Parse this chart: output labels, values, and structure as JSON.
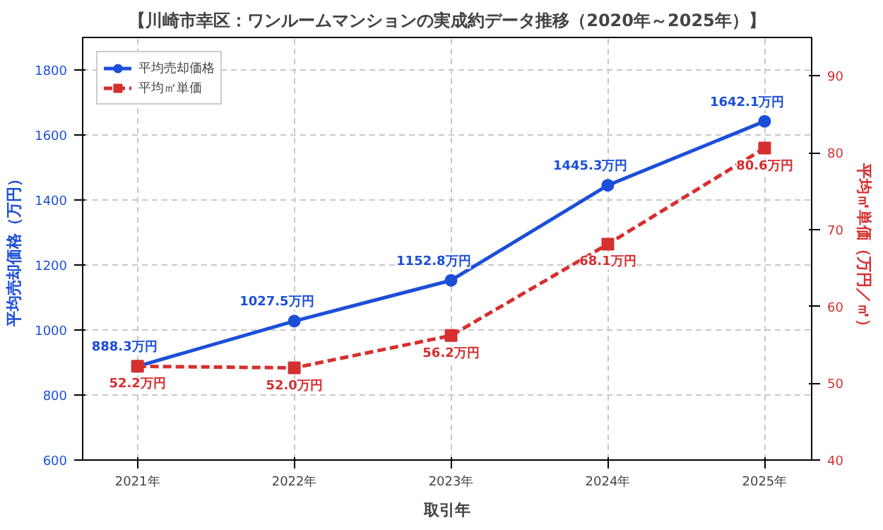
{
  "chart_data": {
    "type": "line",
    "title": "【川崎市幸区：ワンルームマンションの実成約データ推移（2020年～2025年）】",
    "xlabel": "取引年",
    "ylabel": "平均売却価格（万円）",
    "y2label": "平均㎡単価（万円／㎡）",
    "categories": [
      "2021年",
      "2022年",
      "2023年",
      "2024年",
      "2025年"
    ],
    "series": [
      {
        "name": "平均売却価格",
        "color": "#1c4fd8",
        "values": [
          888.3,
          1027.5,
          1152.8,
          1445.3,
          1642.1
        ],
        "value_labels": [
          "888.3万円",
          "1027.5万円",
          "1152.8万円",
          "1445.3万円",
          "1642.1万円"
        ],
        "marker": "circle",
        "line_style": "solid"
      },
      {
        "name": "平均㎡単価",
        "color": "#d62f2f",
        "axis": "y2",
        "values": [
          52.2,
          52.0,
          56.2,
          68.1,
          80.6
        ],
        "value_labels": [
          "52.2万円",
          "52.0万円",
          "56.2万円",
          "68.1万円",
          "80.6万円"
        ],
        "marker": "square",
        "line_style": "dashed"
      }
    ],
    "ylim": [
      600,
      1900
    ],
    "yticks": [
      600,
      800,
      1000,
      1200,
      1400,
      1600,
      1800
    ],
    "y2lim": [
      40,
      95
    ],
    "y2ticks": [
      40,
      50,
      60,
      70,
      80,
      90
    ],
    "grid": true,
    "legend": "top left"
  }
}
